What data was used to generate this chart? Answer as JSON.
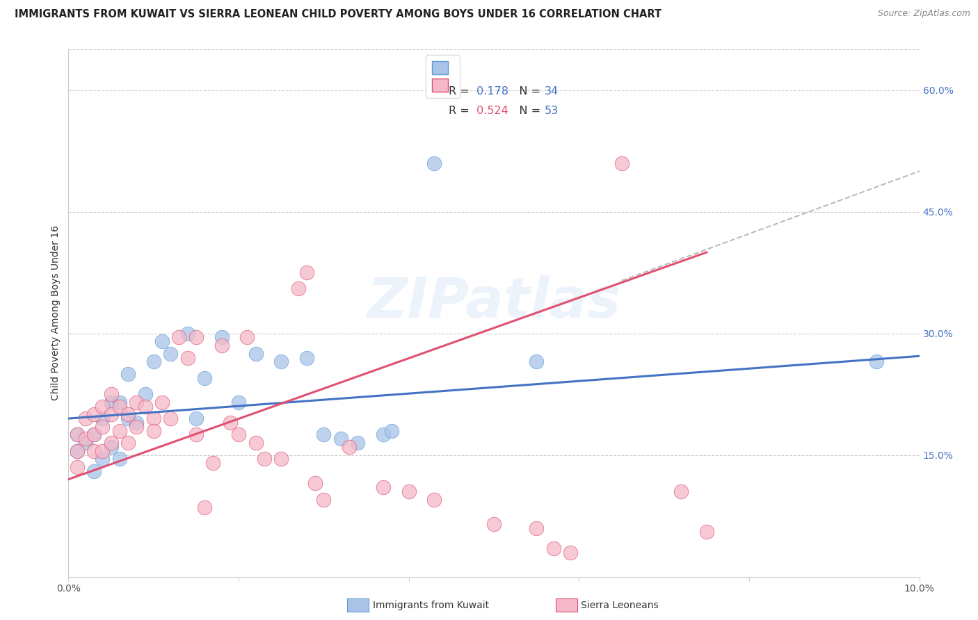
{
  "title": "IMMIGRANTS FROM KUWAIT VS SIERRA LEONEAN CHILD POVERTY AMONG BOYS UNDER 16 CORRELATION CHART",
  "source": "Source: ZipAtlas.com",
  "ylabel": "Child Poverty Among Boys Under 16",
  "xlim": [
    0.0,
    0.1
  ],
  "ylim": [
    0.0,
    0.65
  ],
  "xtick_positions": [
    0.0,
    0.02,
    0.04,
    0.06,
    0.08,
    0.1
  ],
  "xtick_labels": [
    "0.0%",
    "",
    "",
    "",
    "",
    "10.0%"
  ],
  "yticks_right": [
    0.15,
    0.3,
    0.45,
    0.6
  ],
  "ytick_labels_right": [
    "15.0%",
    "30.0%",
    "45.0%",
    "60.0%"
  ],
  "grid_color": "#cccccc",
  "background_color": "#ffffff",
  "watermark": "ZIPatlas",
  "series": [
    {
      "name": "Immigrants from Kuwait",
      "color": "#aac4e8",
      "edge_color": "#5b9bd5",
      "R": "0.178",
      "N": "34",
      "line_color": "#4472c4",
      "x": [
        0.001,
        0.001,
        0.002,
        0.003,
        0.003,
        0.004,
        0.004,
        0.005,
        0.005,
        0.006,
        0.006,
        0.007,
        0.007,
        0.008,
        0.009,
        0.01,
        0.011,
        0.012,
        0.014,
        0.015,
        0.016,
        0.018,
        0.02,
        0.022,
        0.025,
        0.028,
        0.03,
        0.032,
        0.034,
        0.037,
        0.038,
        0.043,
        0.055,
        0.095
      ],
      "y": [
        0.175,
        0.155,
        0.165,
        0.13,
        0.175,
        0.145,
        0.195,
        0.16,
        0.215,
        0.145,
        0.215,
        0.195,
        0.25,
        0.19,
        0.225,
        0.265,
        0.29,
        0.275,
        0.3,
        0.195,
        0.245,
        0.295,
        0.215,
        0.275,
        0.265,
        0.27,
        0.175,
        0.17,
        0.165,
        0.175,
        0.18,
        0.51,
        0.265,
        0.265
      ]
    },
    {
      "name": "Sierra Leoneans",
      "color": "#f4b8c8",
      "edge_color": "#e05070",
      "R": "0.524",
      "N": "53",
      "line_color": "#e05070",
      "x": [
        0.001,
        0.001,
        0.001,
        0.002,
        0.002,
        0.003,
        0.003,
        0.003,
        0.004,
        0.004,
        0.004,
        0.005,
        0.005,
        0.005,
        0.006,
        0.006,
        0.007,
        0.007,
        0.008,
        0.008,
        0.009,
        0.01,
        0.01,
        0.011,
        0.012,
        0.013,
        0.014,
        0.015,
        0.015,
        0.016,
        0.017,
        0.018,
        0.019,
        0.02,
        0.021,
        0.022,
        0.023,
        0.025,
        0.027,
        0.028,
        0.029,
        0.03,
        0.033,
        0.037,
        0.04,
        0.043,
        0.05,
        0.055,
        0.057,
        0.059,
        0.065,
        0.072,
        0.075
      ],
      "y": [
        0.175,
        0.155,
        0.135,
        0.195,
        0.17,
        0.2,
        0.175,
        0.155,
        0.21,
        0.185,
        0.155,
        0.225,
        0.2,
        0.165,
        0.21,
        0.18,
        0.2,
        0.165,
        0.215,
        0.185,
        0.21,
        0.195,
        0.18,
        0.215,
        0.195,
        0.295,
        0.27,
        0.295,
        0.175,
        0.085,
        0.14,
        0.285,
        0.19,
        0.175,
        0.295,
        0.165,
        0.145,
        0.145,
        0.355,
        0.375,
        0.115,
        0.095,
        0.16,
        0.11,
        0.105,
        0.095,
        0.065,
        0.06,
        0.035,
        0.03,
        0.51,
        0.105,
        0.055
      ]
    }
  ],
  "blue_line": {
    "x0": 0.0,
    "y0": 0.195,
    "x1": 0.1,
    "y1": 0.272
  },
  "pink_line": {
    "x0": 0.0,
    "y0": 0.12,
    "x1": 0.075,
    "y1": 0.4
  },
  "dash_line": {
    "x0": 0.065,
    "y0": 0.365,
    "x1": 0.1,
    "y1": 0.5
  },
  "legend_r_color": "#4472c4",
  "legend_n_color": "#4472c4",
  "title_fontsize": 10.5,
  "axis_label_fontsize": 10,
  "tick_fontsize": 10,
  "legend_fontsize": 11
}
